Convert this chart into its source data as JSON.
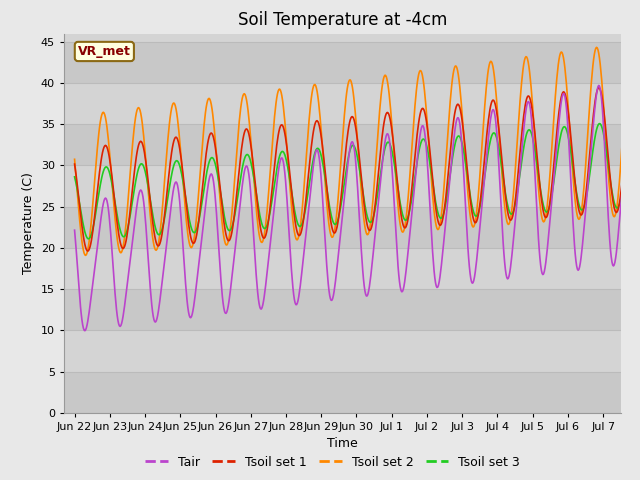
{
  "title": "Soil Temperature at -4cm",
  "xlabel": "Time",
  "ylabel": "Temperature (C)",
  "ylim": [
    0,
    46
  ],
  "yticks": [
    0,
    5,
    10,
    15,
    20,
    25,
    30,
    35,
    40,
    45
  ],
  "legend_label": "VR_met",
  "series_labels": [
    "Tair",
    "Tsoil set 1",
    "Tsoil set 2",
    "Tsoil set 3"
  ],
  "series_colors": [
    "#bb44cc",
    "#dd2200",
    "#ff8800",
    "#22cc22"
  ],
  "fig_facecolor": "#e8e8e8",
  "plot_bg_color": "#d4d4d4",
  "stripe_color": "#c8c8c8",
  "grid_line_color": "#bbbbbb",
  "xtick_labels": [
    "Jun 22",
    "Jun 23",
    "Jun 24",
    "Jun 25",
    "Jun 26",
    "Jun 27",
    "Jun 28",
    "Jun 29",
    "Jun 30",
    "Jul 1",
    "Jul 2",
    "Jul 3",
    "Jul 4",
    "Jul 5",
    "Jul 6",
    "Jul 7"
  ],
  "title_fontsize": 12,
  "axis_label_fontsize": 9,
  "tick_fontsize": 8,
  "legend_fontsize": 9,
  "vr_met_color": "#880000",
  "vr_met_bg": "#ffffe0",
  "vr_met_edge": "#8B6914"
}
